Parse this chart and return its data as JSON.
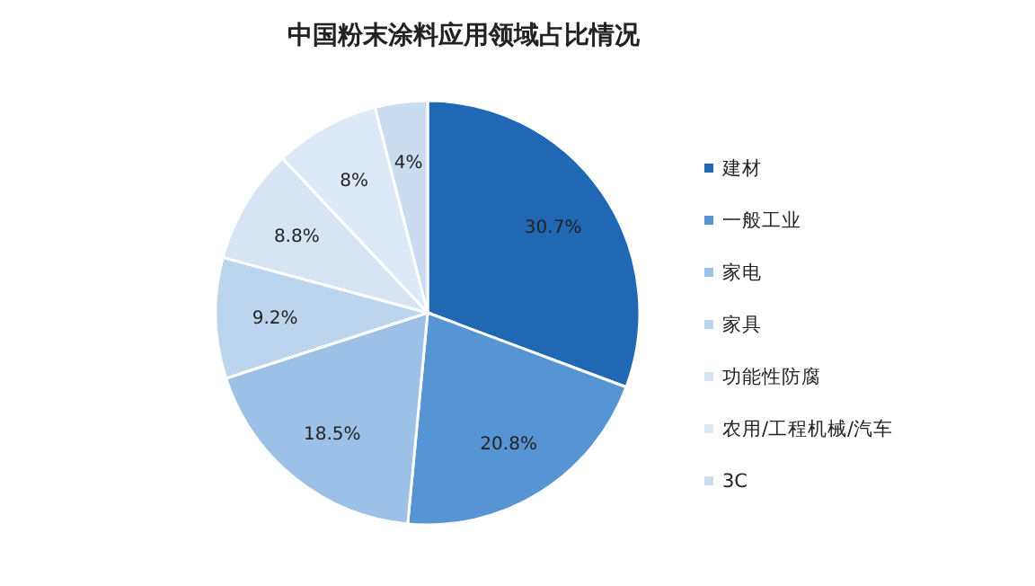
{
  "chart_data": {
    "type": "pie",
    "title": "中国粉末涂料应用领域占比情况",
    "categories": [
      "建材",
      "一般工业",
      "家电",
      "家具",
      "功能性防腐",
      "农用/工程机械/汽车",
      "3C"
    ],
    "values": [
      30.7,
      20.8,
      18.5,
      9.2,
      8.8,
      8,
      4
    ],
    "value_labels": [
      "30.7%",
      "20.8%",
      "18.5%",
      "9.2%",
      "8.8%",
      "8%",
      "4%"
    ],
    "colors": [
      "#2068b4",
      "#5794d3",
      "#9dc1e6",
      "#bcd5ee",
      "#d6e4f3",
      "#dde9f6",
      "#c9dcf0"
    ],
    "legend": "right"
  }
}
